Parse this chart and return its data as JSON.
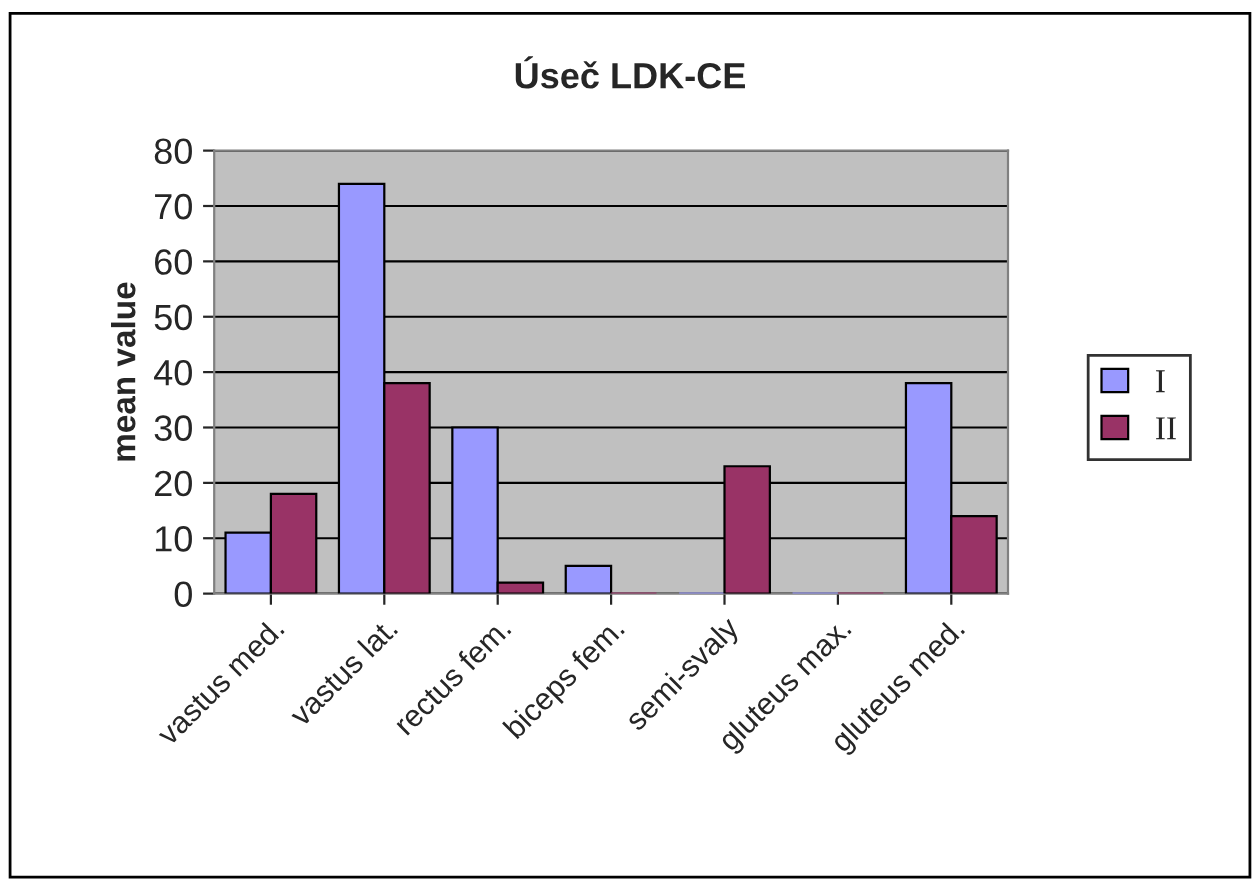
{
  "chart_data": {
    "type": "bar",
    "title": "Úseč LDK-CE",
    "ylabel": "mean value",
    "categories": [
      "vastus med.",
      "vastus lat.",
      "rectus fem.",
      "biceps fem.",
      "semi-svaly",
      "gluteus max.",
      "gluteus med."
    ],
    "series": [
      {
        "name": "I",
        "color": "#9999ff",
        "values": [
          11,
          74,
          30,
          5,
          0,
          0,
          38
        ]
      },
      {
        "name": "II",
        "color": "#993366",
        "values": [
          18,
          38,
          2,
          0,
          23,
          0,
          14
        ]
      }
    ],
    "ylim": [
      0,
      80
    ],
    "yticks": [
      0,
      10,
      20,
      30,
      40,
      50,
      60,
      70,
      80
    ],
    "grid": "y",
    "legend": "right"
  }
}
